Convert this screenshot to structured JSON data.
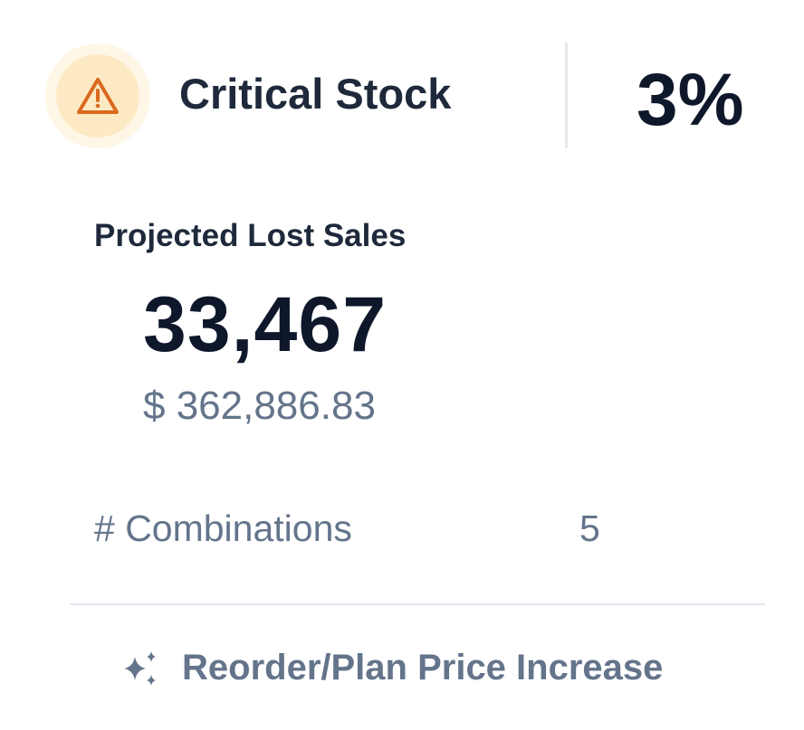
{
  "header": {
    "icon": "warning-triangle-icon",
    "title": "Critical Stock",
    "percentage": "3%"
  },
  "projected_lost_sales": {
    "label": "Projected Lost Sales",
    "units": "33,467",
    "amount": "$ 362,886.83"
  },
  "combinations": {
    "label": "# Combinations",
    "value": "5"
  },
  "action": {
    "icon": "sparkles-icon",
    "label": "Reorder/Plan Price Increase"
  },
  "colors": {
    "warning": "#d9691f",
    "warning_bg": "#fdeac5",
    "muted_text": "#64748b"
  }
}
